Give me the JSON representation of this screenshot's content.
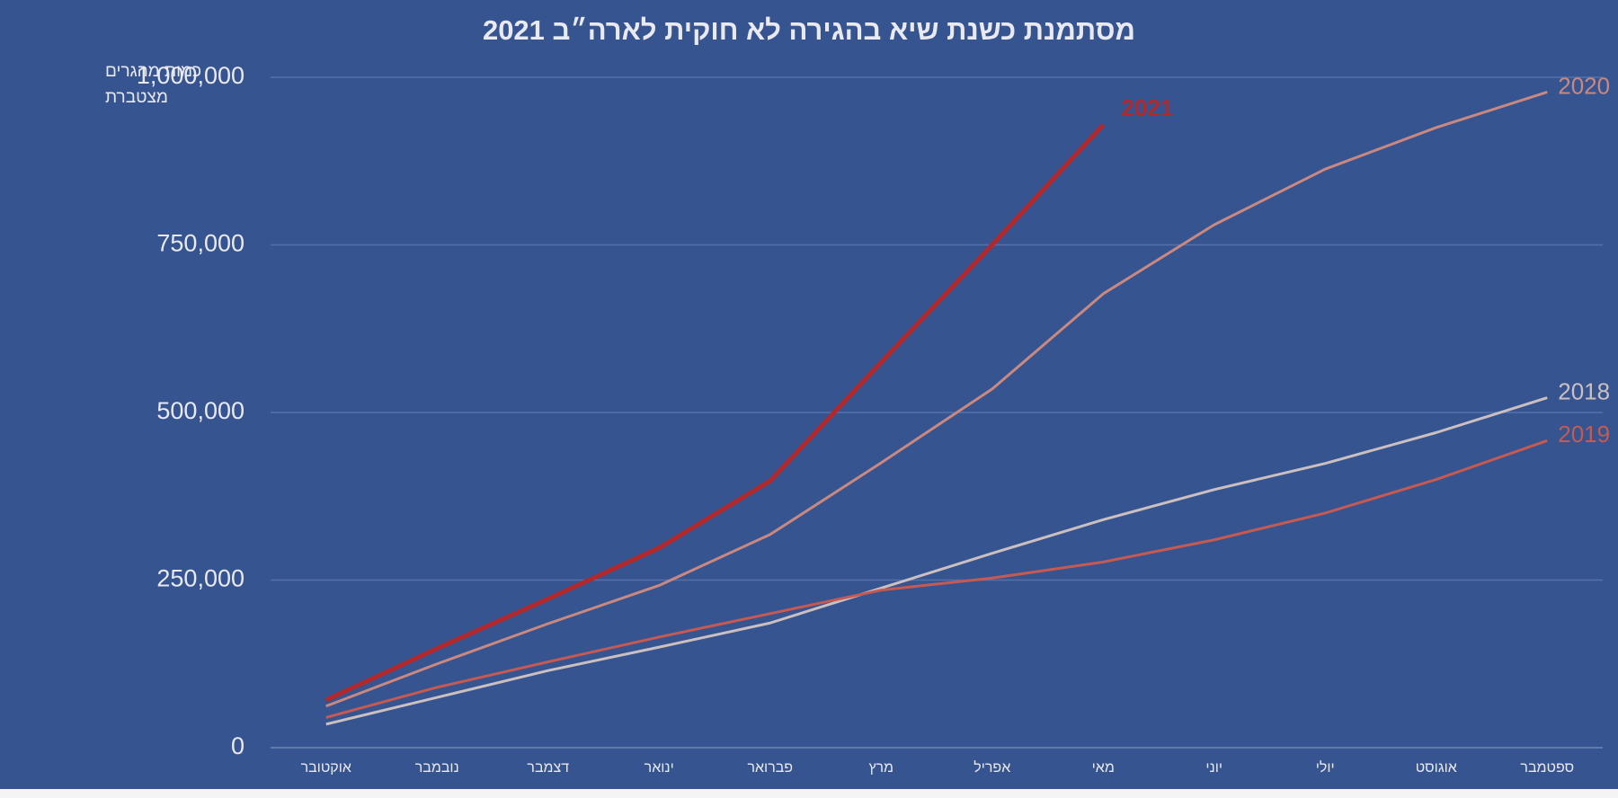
{
  "chart_data": {
    "type": "line",
    "title": "מסתמנת כשנת שיא בהגירה לא חוקית לארה״ב 2021",
    "y_label": [
      "כמות מהגרים",
      "מצטברת"
    ],
    "categories": [
      "אוקטובר",
      "נובמבר",
      "דצמבר",
      "ינואר",
      "פברואר",
      "מרץ",
      "אפריל",
      "מאי",
      "יוני",
      "יולי",
      "אוגוסט",
      "ספטמבר"
    ],
    "ylim": [
      0,
      1000000
    ],
    "yticks": [
      0,
      {
        "value": 250000,
        "label": "250,000"
      },
      {
        "value": 500000,
        "label": "500,000"
      },
      {
        "value": 750000,
        "label": "750,000"
      },
      {
        "value": 1000000,
        "label": "1,000,000"
      }
    ],
    "grid": true,
    "series": [
      {
        "name": "2018",
        "color": "#cbbfc0",
        "values": [
          35000,
          75000,
          115000,
          150000,
          186000,
          238000,
          290000,
          340000,
          385000,
          424000,
          470000,
          522000
        ]
      },
      {
        "name": "2019",
        "color": "#c65a52",
        "values": [
          45000,
          90000,
          128000,
          165000,
          200000,
          235000,
          253000,
          277000,
          310000,
          350000,
          400000,
          458000
        ]
      },
      {
        "name": "2020",
        "color": "#c98880",
        "values": [
          62000,
          125000,
          185000,
          242000,
          318000,
          425000,
          535000,
          677000,
          780000,
          863000,
          925000,
          978000
        ]
      },
      {
        "name": "2021",
        "color": "#b3282a",
        "values": [
          71000,
          148000,
          222000,
          298000,
          398000,
          575000,
          750000,
          929000,
          null,
          null,
          null,
          null
        ]
      }
    ]
  }
}
